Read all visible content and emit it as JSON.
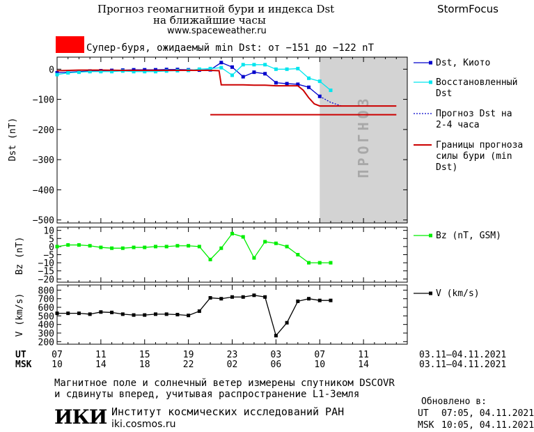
{
  "header": {
    "title_line1": "Прогноз геомагнитной бури и индекса Dst",
    "title_line2": "на ближайшие часы",
    "url": "www.spaceweather.ru",
    "brand": "StormFocus",
    "alert_text": "Супер-буря, ожидаемый min Dst: от −151 до −122 nT",
    "alert_color": "#ff0000"
  },
  "forecast_label": "ПРОГНОЗ",
  "x_axis": {
    "ut_label": "UT",
    "msk_label": "MSK",
    "ut_ticks": [
      "07",
      "11",
      "15",
      "19",
      "23",
      "03",
      "07",
      "11"
    ],
    "msk_ticks": [
      "10",
      "14",
      "18",
      "22",
      "02",
      "06",
      "10",
      "14"
    ],
    "date_range_ut": "03.11–04.11.2021",
    "date_range_msk": "03.11–04.11.2021"
  },
  "chart_data": [
    {
      "type": "line",
      "ylabel": "Dst (nT)",
      "ylim": [
        -510,
        40
      ],
      "yticks": [
        "0",
        "−100",
        "−200",
        "−300",
        "−400",
        "−500"
      ],
      "x_unit": "hours since 03.11.2021 07:00 UT",
      "forecast_region": [
        24,
        32
      ],
      "legend": [
        {
          "name": "Dst, Киото",
          "color": "#0000cc"
        },
        {
          "name": "Восстановленный Dst",
          "color": "#00e5ee"
        },
        {
          "name": "Прогноз Dst на 2-4 часа",
          "color": "#0000cc"
        },
        {
          "name": "Границы прогноза силы бури (min Dst)",
          "color": "#cc0000"
        }
      ],
      "series": [
        {
          "name": "Dst, Киото",
          "color": "#0000cc",
          "x": [
            0,
            1,
            2,
            3,
            4,
            5,
            6,
            7,
            8,
            9,
            10,
            11,
            12,
            13,
            14,
            15,
            16,
            17,
            18,
            19,
            20,
            21,
            22,
            23,
            24
          ],
          "values": [
            -12,
            -10,
            -8,
            -6,
            -5,
            -4,
            -3,
            -2,
            -2,
            -2,
            -1,
            -1,
            -2,
            -3,
            -2,
            22,
            7,
            -25,
            -10,
            -15,
            -45,
            -48,
            -50,
            -60,
            -90
          ]
        },
        {
          "name": "Восстановленный Dst",
          "color": "#00e5ee",
          "x": [
            0,
            1,
            2,
            3,
            4,
            5,
            6,
            7,
            8,
            9,
            10,
            11,
            12,
            13,
            14,
            15,
            16,
            17,
            18,
            19,
            20,
            21,
            22,
            23,
            24,
            25
          ],
          "values": [
            -18,
            -12,
            -10,
            -8,
            -8,
            -8,
            -6,
            -8,
            -8,
            -8,
            -6,
            -5,
            -4,
            0,
            2,
            5,
            -20,
            15,
            15,
            15,
            0,
            0,
            2,
            -30,
            -40,
            -70
          ]
        },
        {
          "name": "Прогноз Dst на 2-4 часа",
          "color": "#0000cc",
          "x": [
            24,
            25,
            26,
            27,
            28,
            29,
            30
          ],
          "values": [
            -90,
            -110,
            -122,
            -122,
            -122,
            -122,
            -122
          ]
        },
        {
          "name": "Границы прогноза силы бури (min Dst)",
          "color": "#cc0000",
          "x": [
            0,
            2,
            4,
            6,
            8,
            10,
            12,
            14,
            14.8,
            15,
            16,
            17,
            18,
            19,
            20,
            21,
            22,
            22.5,
            23,
            23.5,
            24,
            25,
            26,
            27,
            28,
            29,
            30,
            31
          ],
          "values": [
            -5,
            -3,
            -3,
            -4,
            -4,
            -4,
            -4,
            -4,
            -5,
            -52,
            -52,
            -52,
            -53,
            -53,
            -55,
            -55,
            -55,
            -70,
            -95,
            -115,
            -122,
            -122,
            -122,
            -122,
            -122,
            -122,
            -122,
            -122
          ]
        },
        {
          "name": "Границы прогноза силы бури (min Dst)",
          "color": "#cc0000",
          "x": [
            14,
            31
          ],
          "values": [
            -151,
            -151
          ]
        }
      ]
    },
    {
      "type": "line",
      "ylabel": "Bz (nT)",
      "ylim": [
        -22,
        12
      ],
      "yticks": [
        "10",
        "5",
        "0",
        "−5",
        "−10",
        "−15",
        "−20"
      ],
      "legend": [
        {
          "name": "Bz (nT, GSM)",
          "color": "#00ee00"
        }
      ],
      "series": [
        {
          "name": "Bz (nT, GSM)",
          "color": "#00ee00",
          "x": [
            0,
            1,
            2,
            3,
            4,
            5,
            6,
            7,
            8,
            9,
            10,
            11,
            12,
            13,
            14,
            15,
            16,
            17,
            18,
            19,
            20,
            21,
            22,
            23,
            24,
            25
          ],
          "values": [
            0,
            1,
            1,
            0.5,
            -0.5,
            -1,
            -1,
            -0.5,
            -0.5,
            0,
            0,
            0.5,
            0.5,
            0,
            -8,
            -1,
            8,
            6,
            -7,
            3,
            2,
            0,
            -5,
            -10,
            -10,
            -10
          ]
        }
      ]
    },
    {
      "type": "line",
      "ylabel": "V (km/s)",
      "ylim": [
        170,
        860
      ],
      "yticks": [
        "800",
        "700",
        "600",
        "500",
        "400",
        "300",
        "200"
      ],
      "legend": [
        {
          "name": "V (km/s)",
          "color": "#000000"
        }
      ],
      "series": [
        {
          "name": "V (km/s)",
          "color": "#000000",
          "x": [
            0,
            1,
            2,
            3,
            4,
            5,
            6,
            7,
            8,
            9,
            10,
            11,
            12,
            13,
            14,
            15,
            16,
            17,
            18,
            19,
            20,
            21,
            22,
            23,
            24,
            25
          ],
          "values": [
            530,
            530,
            530,
            520,
            545,
            540,
            520,
            510,
            510,
            520,
            520,
            515,
            505,
            555,
            710,
            700,
            720,
            720,
            740,
            720,
            270,
            420,
            670,
            700,
            680,
            680
          ]
        }
      ]
    }
  ],
  "footer": {
    "line1": "Магнитное поле и солнечный ветер измерены спутником DSCOVR",
    "line2": "и сдвинуты вперед, учитывая распространение L1-Земля",
    "logo_text": "ИКИ",
    "institute": "Институт космических исследований РАН",
    "institute_url": "iki.cosmos.ru",
    "updated_label": "Обновлено в:",
    "updated_ut_label": "UT",
    "updated_ut": "07:05, 04.11.2021",
    "updated_msk_label": "MSK",
    "updated_msk": "10:05, 04.11.2021"
  }
}
